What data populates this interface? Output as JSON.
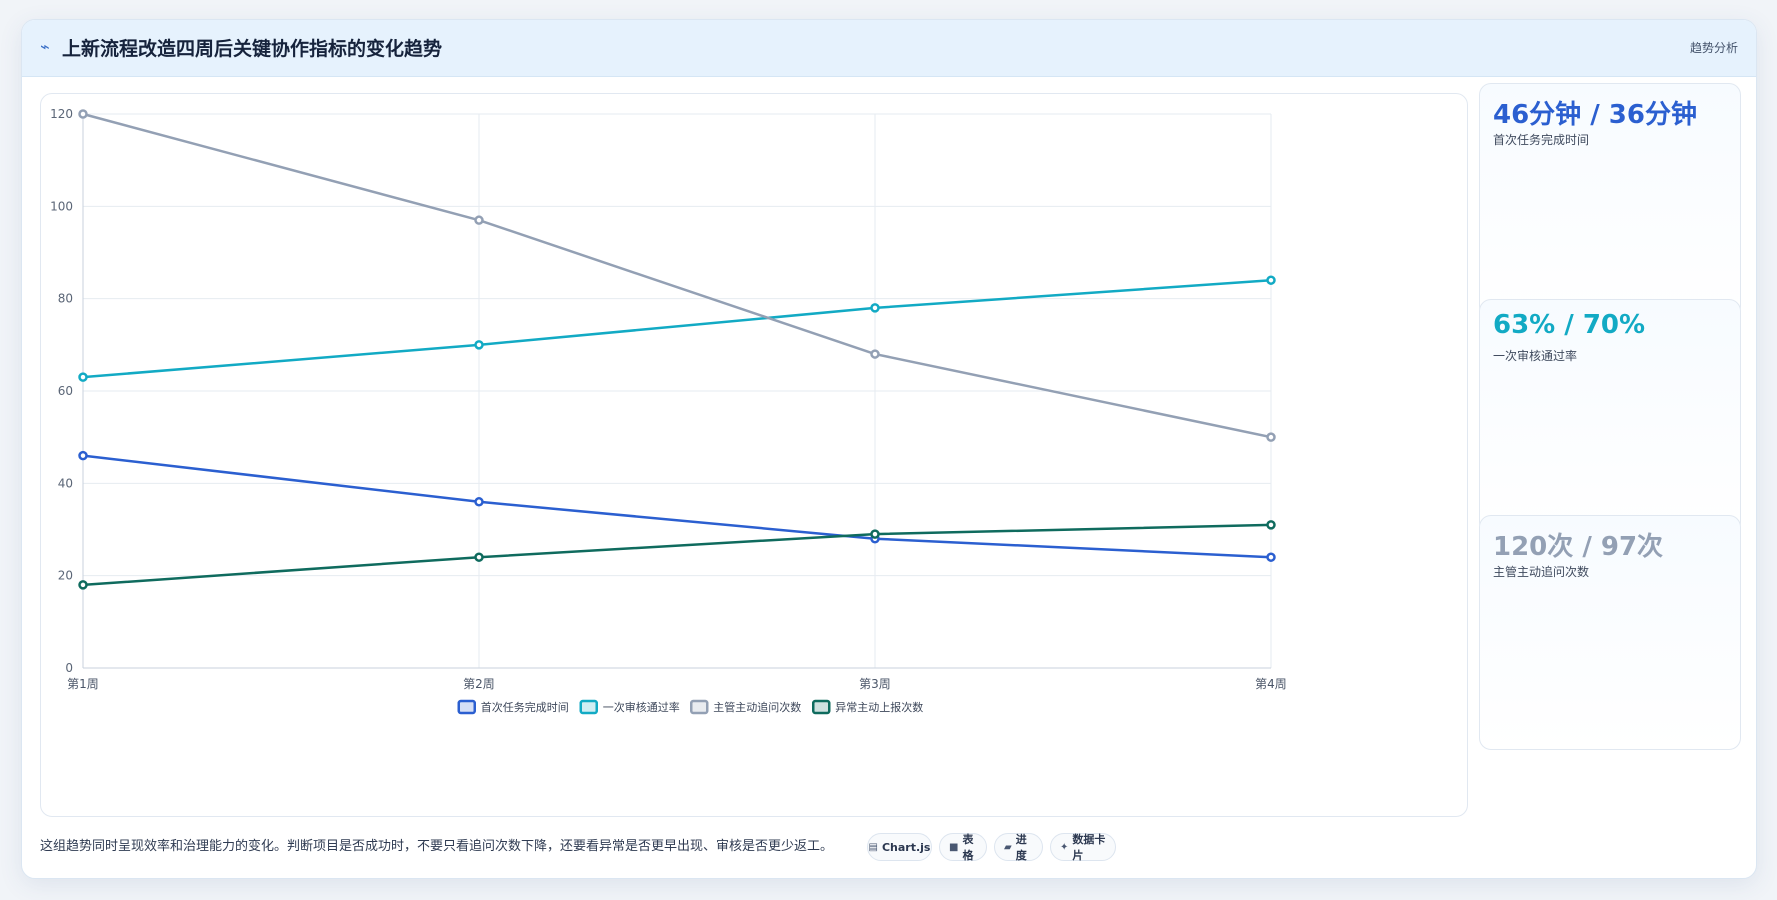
{
  "header": {
    "icon": "sparkline-icon",
    "title": "上新流程改造四周后关键协作指标的变化趋势",
    "tag": "趋势分析"
  },
  "kpis": [
    {
      "value": "46分钟 / 36分钟",
      "label": "首次任务完成时间",
      "color": "#2b5fd0"
    },
    {
      "value": "63% / 70%",
      "label": "一次审核通过率",
      "color": "#12aac4"
    },
    {
      "value": "120次 / 97次",
      "label": "主管主动追问次数",
      "color": "#93a0b4"
    }
  ],
  "footer": {
    "text": "这组趋势同时呈现效率和治理能力的变化。判断项目是否成功时，不要只看追问次数下降，还要看异常是否更早出现、审核是否更少返工。",
    "pills": [
      {
        "icon": "chart-icon",
        "label": "Chart.js"
      },
      {
        "icon": "table-icon",
        "label": "表格"
      },
      {
        "icon": "progress-icon",
        "label": "进度"
      },
      {
        "icon": "card-icon",
        "label": "数据卡片"
      }
    ]
  },
  "chart_data": {
    "type": "line",
    "categories": [
      "第1周",
      "第2周",
      "第3周",
      "第4周"
    ],
    "ylim": [
      0,
      120
    ],
    "yticks": [
      0,
      20,
      40,
      60,
      80,
      100,
      120
    ],
    "grid": true,
    "legend_position": "bottom",
    "series": [
      {
        "name": "首次任务完成时间",
        "values": [
          46,
          36,
          28,
          24
        ],
        "color": "#2b5fd0"
      },
      {
        "name": "一次审核通过率",
        "values": [
          63,
          70,
          78,
          84
        ],
        "color": "#12aac4"
      },
      {
        "name": "主管主动追问次数",
        "values": [
          120,
          97,
          68,
          50
        ],
        "color": "#93a0b4"
      },
      {
        "name": "异常主动上报次数",
        "values": [
          18,
          24,
          29,
          31
        ],
        "color": "#0f6b5e"
      }
    ]
  }
}
